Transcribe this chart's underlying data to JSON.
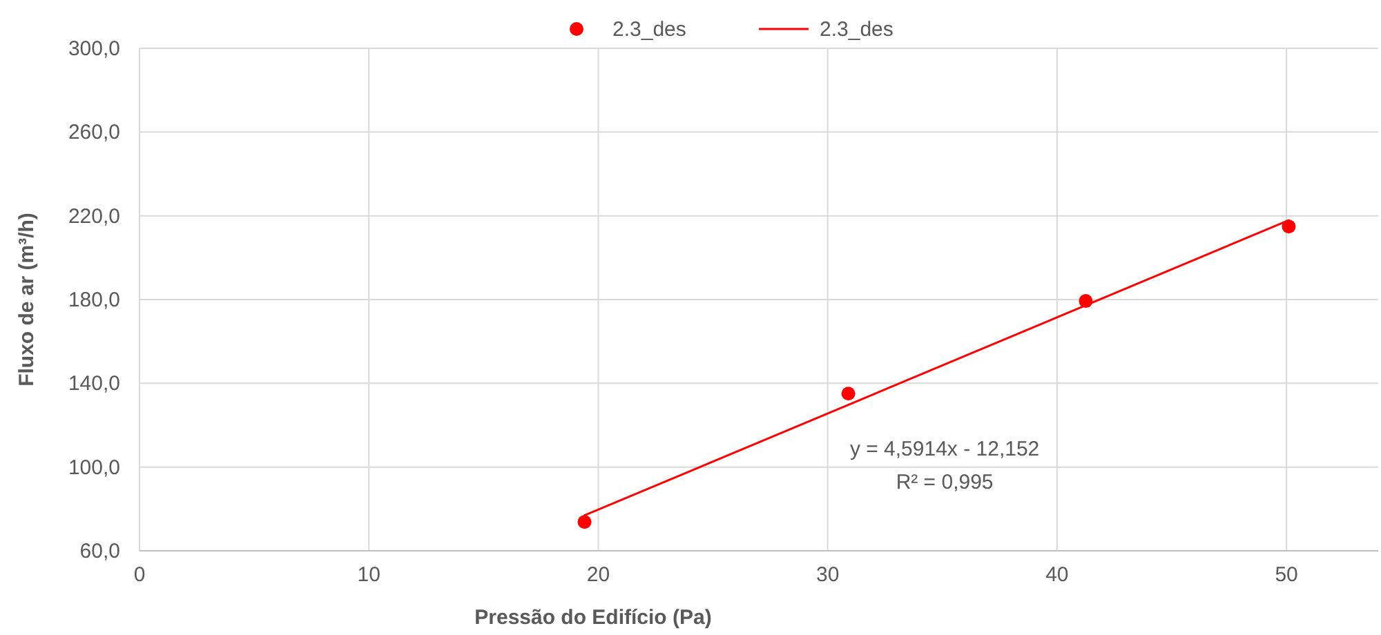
{
  "chart_data": {
    "type": "scatter",
    "xlabel": "Pressão do Edifício (Pa)",
    "ylabel": "Fluxo de ar (m³/h)",
    "xlim": [
      0,
      54
    ],
    "xticks": [
      0,
      10,
      20,
      30,
      40,
      50
    ],
    "ylim": [
      60,
      300
    ],
    "yticks": [
      {
        "value": 60,
        "label": "60,0"
      },
      {
        "value": 100,
        "label": "100,0"
      },
      {
        "value": 140,
        "label": "140,0"
      },
      {
        "value": 180,
        "label": "180,0"
      },
      {
        "value": 220,
        "label": "220,0"
      },
      {
        "value": 260,
        "label": "260,0"
      },
      {
        "value": 300,
        "label": "300,0"
      }
    ],
    "grid": true,
    "legend": "top",
    "series": [
      {
        "name": "2.3_des",
        "color": "#ff0000",
        "marker": "circle",
        "x": [
          19.4,
          30.9,
          41.25,
          50.1
        ],
        "values": [
          73.8,
          135.1,
          179.3,
          214.9
        ]
      },
      {
        "name": "2.3_des",
        "type": "line",
        "color": "#ff0000",
        "x": [
          19.4,
          50.1
        ],
        "values": [
          76.9,
          217.9
        ],
        "line_style": "solid"
      }
    ],
    "annotations": [
      "y = 4,5914x - 12,152",
      "R² = 0,995"
    ]
  }
}
